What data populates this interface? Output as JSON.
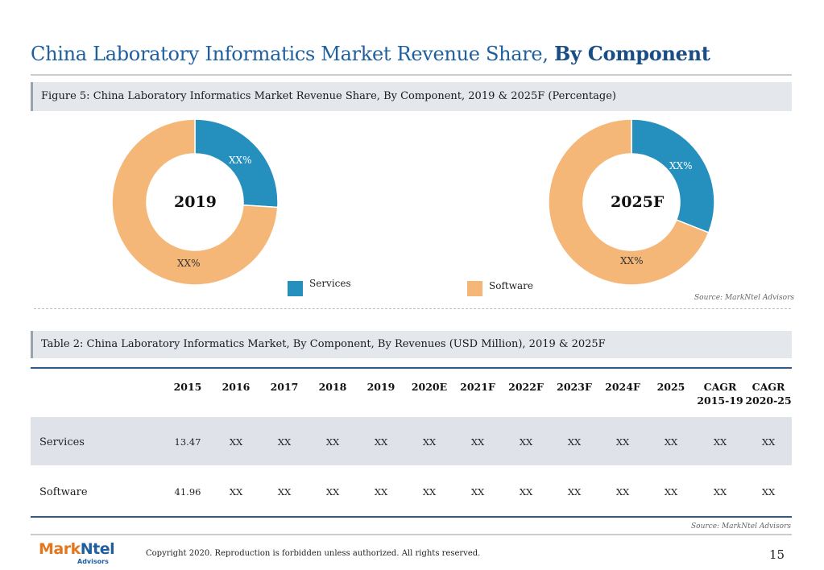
{
  "title": {
    "main": "China Laboratory Informatics Market Revenue Share,",
    "bold": "By Component"
  },
  "figure": {
    "caption": "Figure 5: China Laboratory Informatics Market Revenue Share, By Component, 2019 & 2025F (Percentage)",
    "source": "Source: MarkNtel Advisors"
  },
  "chart_data": [
    {
      "type": "pie",
      "title": "2019",
      "categories": [
        "Services",
        "Software"
      ],
      "values": [
        26,
        74
      ],
      "data_labels": [
        "XX%",
        "XX%"
      ],
      "colors": [
        "#2590bd",
        "#f5b777"
      ]
    },
    {
      "type": "pie",
      "title": "2025F",
      "categories": [
        "Services",
        "Software"
      ],
      "values": [
        31,
        69
      ],
      "data_labels": [
        "XX%",
        "XX%"
      ],
      "colors": [
        "#2590bd",
        "#f5b777"
      ]
    }
  ],
  "legend": {
    "items": [
      {
        "label": "Services",
        "color": "#2590bd"
      },
      {
        "label": "Software",
        "color": "#f5b777"
      }
    ]
  },
  "table": {
    "caption": "Table 2: China Laboratory Informatics Market, By Component, By Revenues (USD Million), 2019 & 2025F",
    "source": "Source: MarkNtel Advisors",
    "headers": [
      "2015",
      "2016",
      "2017",
      "2018",
      "2019",
      "2020E",
      "2021F",
      "2022F",
      "2023F",
      "2024F",
      "2025"
    ],
    "cagr_headers": [
      {
        "line1": "CAGR",
        "line2": "2015-19"
      },
      {
        "line1": "CAGR",
        "line2": "2020-25"
      }
    ],
    "rows": [
      {
        "label": "Services",
        "cells": [
          "13.47",
          "XX",
          "XX",
          "XX",
          "XX",
          "XX",
          "XX",
          "XX",
          "XX",
          "XX",
          "XX",
          "XX",
          "XX"
        ]
      },
      {
        "label": "Software",
        "cells": [
          "41.96",
          "XX",
          "XX",
          "XX",
          "XX",
          "XX",
          "XX",
          "XX",
          "XX",
          "XX",
          "XX",
          "XX",
          "XX"
        ]
      }
    ]
  },
  "footer": {
    "logo_part1": "Mark",
    "logo_part2": "Ntel",
    "logo_sub": "Advisors",
    "copyright": "Copyright 2020. Reproduction is forbidden unless authorized. All rights reserved.",
    "page": "15"
  }
}
